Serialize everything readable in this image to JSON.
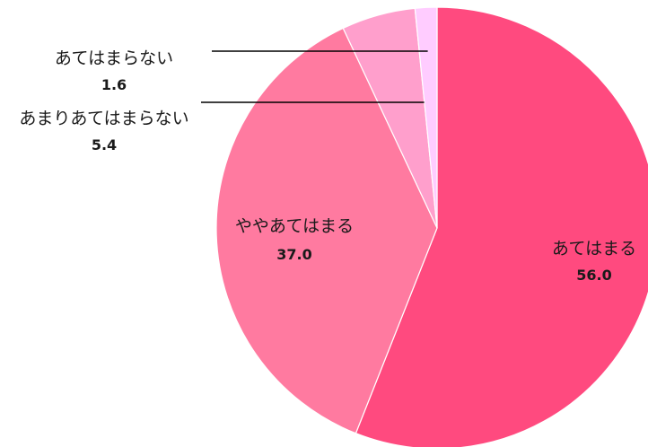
{
  "chart_data": {
    "type": "pie",
    "categories": [
      "あてはまる",
      "ややあてはまる",
      "あまりあてはまらない",
      "あてはまらない"
    ],
    "values": [
      56.0,
      37.0,
      5.4,
      1.6
    ],
    "value_labels": [
      "56.0",
      "37.0",
      "5.4",
      "1.6"
    ],
    "colors": [
      "#ff4a7f",
      "#ff7aa0",
      "#ff9fcc",
      "#ffccff"
    ],
    "start": "12 o'clock",
    "direction": "clockwise",
    "legend": "none"
  }
}
